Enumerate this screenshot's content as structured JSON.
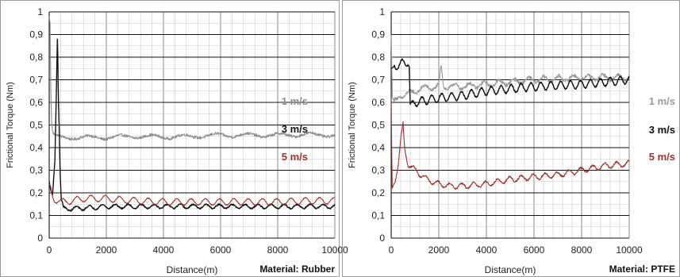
{
  "chart_data": [
    {
      "type": "line",
      "id": "rubber",
      "title": "",
      "xlabel": "Distance(m)",
      "ylabel": "Frictional Torque (Nm)",
      "material_label": "Material: Rubber",
      "xlim": [
        0,
        10000
      ],
      "ylim": [
        0,
        1
      ],
      "x_ticks": [
        "0",
        "2000",
        "4000",
        "6000",
        "8000",
        "10000"
      ],
      "y_ticks": [
        "0",
        "0,1",
        "0,2",
        "0,3",
        "0,4",
        "0,5",
        "0,6",
        "0,7",
        "0,8",
        "0,9",
        "1"
      ],
      "grid": true,
      "legend_position": "right",
      "series": [
        {
          "name": "1 m/s",
          "color": "#8c8c8c",
          "amp": 0.008,
          "freq": 0.9,
          "noise": 0.006,
          "points": [
            [
              0,
              0.98
            ],
            [
              30,
              0.95
            ],
            [
              60,
              0.62
            ],
            [
              90,
              0.5
            ],
            [
              130,
              0.46
            ],
            [
              200,
              0.45
            ],
            [
              400,
              0.445
            ],
            [
              1000,
              0.445
            ],
            [
              2000,
              0.445
            ],
            [
              3000,
              0.45
            ],
            [
              4000,
              0.447
            ],
            [
              5000,
              0.45
            ],
            [
              6000,
              0.455
            ],
            [
              7000,
              0.455
            ],
            [
              8000,
              0.455
            ],
            [
              9000,
              0.458
            ],
            [
              10000,
              0.455
            ]
          ]
        },
        {
          "name": "3 m/s",
          "color": "#111111",
          "amp": 0.009,
          "freq": 2.2,
          "noise": 0.003,
          "points": [
            [
              0,
              0.25
            ],
            [
              60,
              0.21
            ],
            [
              120,
              0.19
            ],
            [
              200,
              0.35
            ],
            [
              250,
              0.65
            ],
            [
              290,
              0.92
            ],
            [
              320,
              0.62
            ],
            [
              350,
              0.5
            ],
            [
              380,
              0.3
            ],
            [
              420,
              0.17
            ],
            [
              500,
              0.13
            ],
            [
              800,
              0.13
            ],
            [
              1500,
              0.135
            ],
            [
              2000,
              0.14
            ],
            [
              3000,
              0.14
            ],
            [
              4000,
              0.14
            ],
            [
              5000,
              0.14
            ],
            [
              6000,
              0.14
            ],
            [
              7000,
              0.14
            ],
            [
              8000,
              0.14
            ],
            [
              9000,
              0.14
            ],
            [
              10000,
              0.14
            ]
          ]
        },
        {
          "name": "5 m/s",
          "color": "#a0302b",
          "amp": 0.014,
          "freq": 2.0,
          "noise": 0.002,
          "points": [
            [
              0,
              0.24
            ],
            [
              50,
              0.23
            ],
            [
              100,
              0.19
            ],
            [
              200,
              0.17
            ],
            [
              400,
              0.16
            ],
            [
              800,
              0.165
            ],
            [
              1200,
              0.175
            ],
            [
              2000,
              0.175
            ],
            [
              3000,
              0.165
            ],
            [
              4000,
              0.16
            ],
            [
              5000,
              0.16
            ],
            [
              6000,
              0.16
            ],
            [
              7000,
              0.16
            ],
            [
              8000,
              0.16
            ],
            [
              9000,
              0.165
            ],
            [
              10000,
              0.165
            ]
          ]
        }
      ]
    },
    {
      "type": "line",
      "id": "ptfe",
      "title": "",
      "xlabel": "Distance(m)",
      "ylabel": "Frictional Torque (Nm)",
      "material_label": "Material: PTFE",
      "xlim": [
        0,
        10000
      ],
      "ylim": [
        0,
        1
      ],
      "x_ticks": [
        "0",
        "2000",
        "4000",
        "6000",
        "8000",
        "10000"
      ],
      "y_ticks": [
        "0",
        "0,1",
        "0,2",
        "0,3",
        "0,4",
        "0,5",
        "0,6",
        "0,7",
        "0,8",
        "0,9",
        "1"
      ],
      "grid": true,
      "legend_position": "right",
      "series": [
        {
          "name": "1 m/s",
          "color": "#9a9a9a",
          "amp": 0.012,
          "freq": 1.6,
          "noise": 0.008,
          "points": [
            [
              0,
              0.9
            ],
            [
              50,
              0.62
            ],
            [
              150,
              0.6
            ],
            [
              400,
              0.63
            ],
            [
              800,
              0.64
            ],
            [
              1200,
              0.66
            ],
            [
              2000,
              0.67
            ],
            [
              2100,
              0.76
            ],
            [
              2200,
              0.67
            ],
            [
              3000,
              0.67
            ],
            [
              4000,
              0.68
            ],
            [
              5000,
              0.69
            ],
            [
              6000,
              0.7
            ],
            [
              7000,
              0.705
            ],
            [
              8000,
              0.71
            ],
            [
              9000,
              0.71
            ],
            [
              10000,
              0.71
            ]
          ]
        },
        {
          "name": "3 m/s",
          "color": "#111111",
          "amp": 0.018,
          "freq": 2.4,
          "noise": 0.003,
          "points": [
            [
              0,
              0.75
            ],
            [
              150,
              0.76
            ],
            [
              400,
              0.77
            ],
            [
              700,
              0.78
            ],
            [
              760,
              0.76
            ],
            [
              800,
              0.58
            ],
            [
              1000,
              0.6
            ],
            [
              1500,
              0.61
            ],
            [
              2000,
              0.62
            ],
            [
              3000,
              0.63
            ],
            [
              4000,
              0.65
            ],
            [
              5000,
              0.66
            ],
            [
              6000,
              0.67
            ],
            [
              7000,
              0.675
            ],
            [
              8000,
              0.68
            ],
            [
              9000,
              0.69
            ],
            [
              10000,
              0.7
            ]
          ]
        },
        {
          "name": "5 m/s",
          "color": "#a0302b",
          "amp": 0.012,
          "freq": 2.0,
          "noise": 0.004,
          "points": [
            [
              0,
              0.62
            ],
            [
              40,
              0.22
            ],
            [
              150,
              0.25
            ],
            [
              300,
              0.33
            ],
            [
              420,
              0.45
            ],
            [
              500,
              0.5
            ],
            [
              560,
              0.4
            ],
            [
              700,
              0.33
            ],
            [
              1000,
              0.3
            ],
            [
              1500,
              0.26
            ],
            [
              2000,
              0.24
            ],
            [
              2500,
              0.23
            ],
            [
              3000,
              0.23
            ],
            [
              4000,
              0.24
            ],
            [
              5000,
              0.26
            ],
            [
              6000,
              0.27
            ],
            [
              7000,
              0.28
            ],
            [
              8000,
              0.3
            ],
            [
              9000,
              0.32
            ],
            [
              10000,
              0.33
            ]
          ]
        }
      ]
    }
  ]
}
